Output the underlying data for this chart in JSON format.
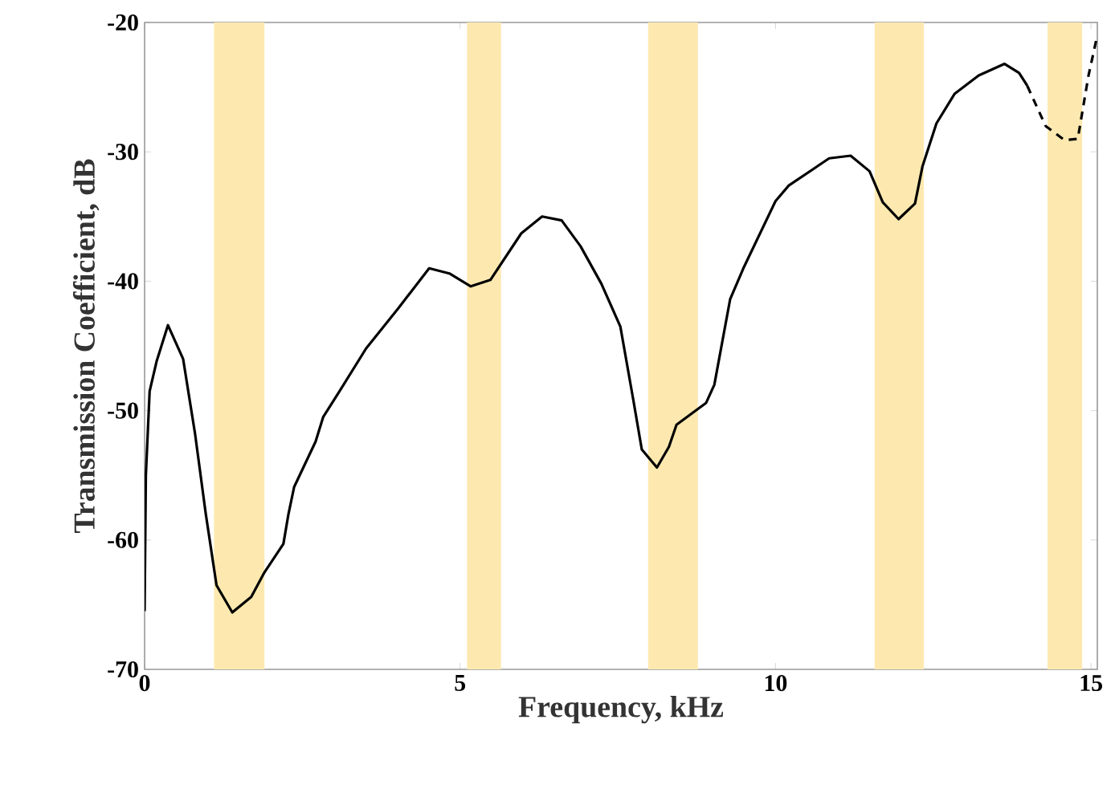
{
  "chart_data": {
    "type": "line",
    "xlabel": "Frequency, kHz",
    "ylabel": "Transmission Coefficient, dB",
    "xlim": [
      0,
      15.1
    ],
    "ylim": [
      -70,
      -20
    ],
    "xticks": [
      0,
      5,
      10,
      15
    ],
    "yticks": [
      -70,
      -60,
      -50,
      -40,
      -30,
      -20
    ],
    "grid": false,
    "marker": "none",
    "bands": [
      {
        "axis": "x",
        "from": 1.1,
        "to": 1.9,
        "color": "#fde9b0"
      },
      {
        "axis": "x",
        "from": 5.11,
        "to": 5.65,
        "color": "#fde9b0"
      },
      {
        "axis": "x",
        "from": 7.98,
        "to": 8.77,
        "color": "#fde9b0"
      },
      {
        "axis": "x",
        "from": 11.57,
        "to": 12.35,
        "color": "#fde9b0"
      },
      {
        "axis": "x",
        "from": 14.31,
        "to": 14.86,
        "color": "#fde9b0"
      }
    ],
    "series": [
      {
        "color": "#000000",
        "line_style": "solid",
        "x": [
          0,
          0.02,
          0.08,
          0.19,
          0.37,
          0.61,
          0.8,
          0.97,
          1.14,
          1.39,
          1.69,
          1.9,
          2.2,
          2.28,
          2.37,
          2.71,
          2.83,
          3.09,
          3.51,
          4.02,
          4.51,
          4.83,
          5.17,
          5.48,
          5.97,
          6.3,
          6.61,
          6.91,
          7.24,
          7.54,
          7.75,
          7.88,
          8.12,
          8.31,
          8.43,
          8.9,
          9.03,
          9.28,
          9.49,
          10.0,
          10.21,
          10.85,
          11.19,
          11.49,
          11.7,
          11.95,
          12.21,
          12.33,
          12.55,
          12.84,
          13.22,
          13.63,
          13.86,
          13.99
        ],
        "values": [
          -65.5,
          -55,
          -48.5,
          -46.2,
          -43.4,
          -46,
          -51.8,
          -58,
          -63.5,
          -65.6,
          -64.4,
          -62.5,
          -60.3,
          -58,
          -55.9,
          -52.4,
          -50.5,
          -48.5,
          -45.2,
          -42.1,
          -39,
          -39.4,
          -40.4,
          -39.9,
          -36.3,
          -35,
          -35.3,
          -37.3,
          -40.2,
          -43.5,
          -49.3,
          -53,
          -54.4,
          -52.8,
          -51.1,
          -49.4,
          -48,
          -41.4,
          -39,
          -33.8,
          -32.6,
          -30.5,
          -30.3,
          -31.5,
          -33.9,
          -35.2,
          -34,
          -31.1,
          -27.8,
          -25.5,
          -24.1,
          -23.2,
          -23.9,
          -24.9
        ]
      },
      {
        "color": "#000000",
        "line_style": "dashed",
        "x": [
          13.99,
          14.28,
          14.58,
          14.79,
          14.96,
          15.09
        ],
        "values": [
          -24.9,
          -28,
          -29.1,
          -29,
          -24.1,
          -21.2
        ]
      }
    ]
  }
}
